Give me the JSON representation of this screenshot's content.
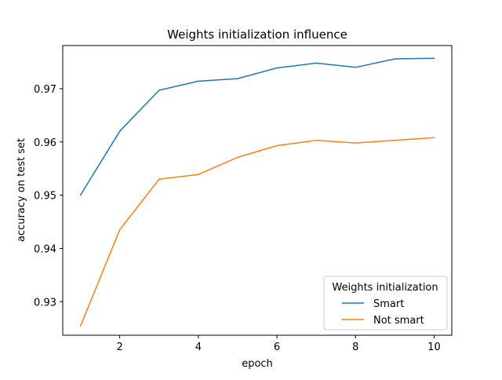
{
  "chart_data": {
    "type": "line",
    "title": "Weights initialization influence",
    "xlabel": "epoch",
    "ylabel": "accuracy on test set",
    "x": [
      1,
      2,
      3,
      4,
      5,
      6,
      7,
      8,
      9,
      10
    ],
    "xlim": [
      0.55,
      10.45
    ],
    "ylim": [
      0.9237,
      0.9781
    ],
    "xticks": [
      2,
      4,
      6,
      8,
      10
    ],
    "xtick_labels": [
      "2",
      "4",
      "6",
      "8",
      "10"
    ],
    "yticks": [
      0.93,
      0.94,
      0.95,
      0.96,
      0.97
    ],
    "ytick_labels": [
      "0.93",
      "0.94",
      "0.95",
      "0.96",
      "0.97"
    ],
    "grid": false,
    "series": [
      {
        "name": "Smart",
        "color": "#1f77b4",
        "values": [
          0.95,
          0.962,
          0.9697,
          0.9714,
          0.9719,
          0.9739,
          0.9748,
          0.974,
          0.9756,
          0.9757
        ]
      },
      {
        "name": "Not smart",
        "color": "#ff7f0e",
        "values": [
          0.9254,
          0.9435,
          0.953,
          0.9539,
          0.9571,
          0.9593,
          0.9603,
          0.9598,
          0.9603,
          0.9608
        ]
      }
    ],
    "legend": {
      "title": "Weights initialization",
      "position": "lower-right"
    }
  }
}
